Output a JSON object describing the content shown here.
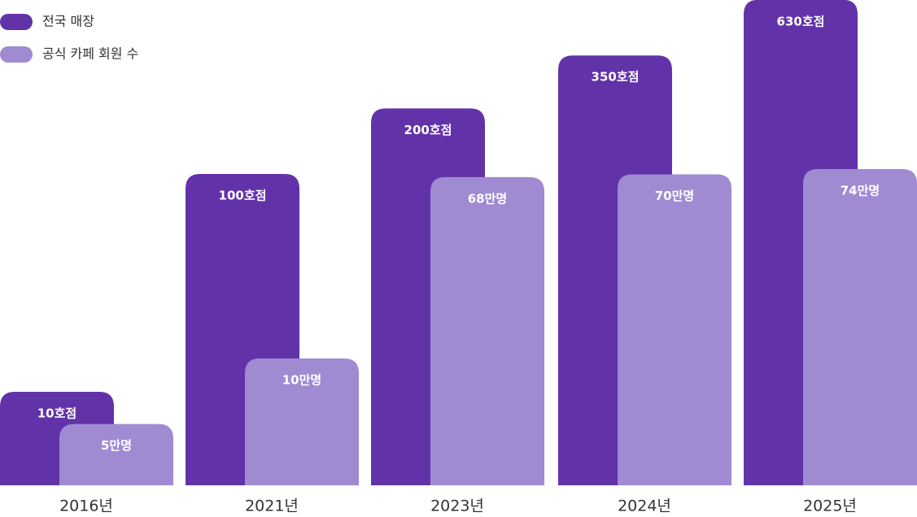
{
  "chart_data": {
    "type": "bar",
    "categories": [
      "2016년",
      "2021년",
      "2023년",
      "2024년",
      "2025년"
    ],
    "series": [
      {
        "name": "전국 매장",
        "color": "#6233a8",
        "values": [
          10,
          100,
          200,
          350,
          630
        ],
        "value_labels": [
          "10호점",
          "100호점",
          "200호점",
          "350호점",
          "630호점"
        ]
      },
      {
        "name": "공식 카페 회원 수",
        "color": "#a08ad2",
        "values": [
          5,
          10,
          68,
          70,
          74
        ],
        "value_labels": [
          "5만명",
          "10만명",
          "68만명",
          "70만명",
          "74만명"
        ]
      }
    ],
    "legend": "top-left"
  }
}
